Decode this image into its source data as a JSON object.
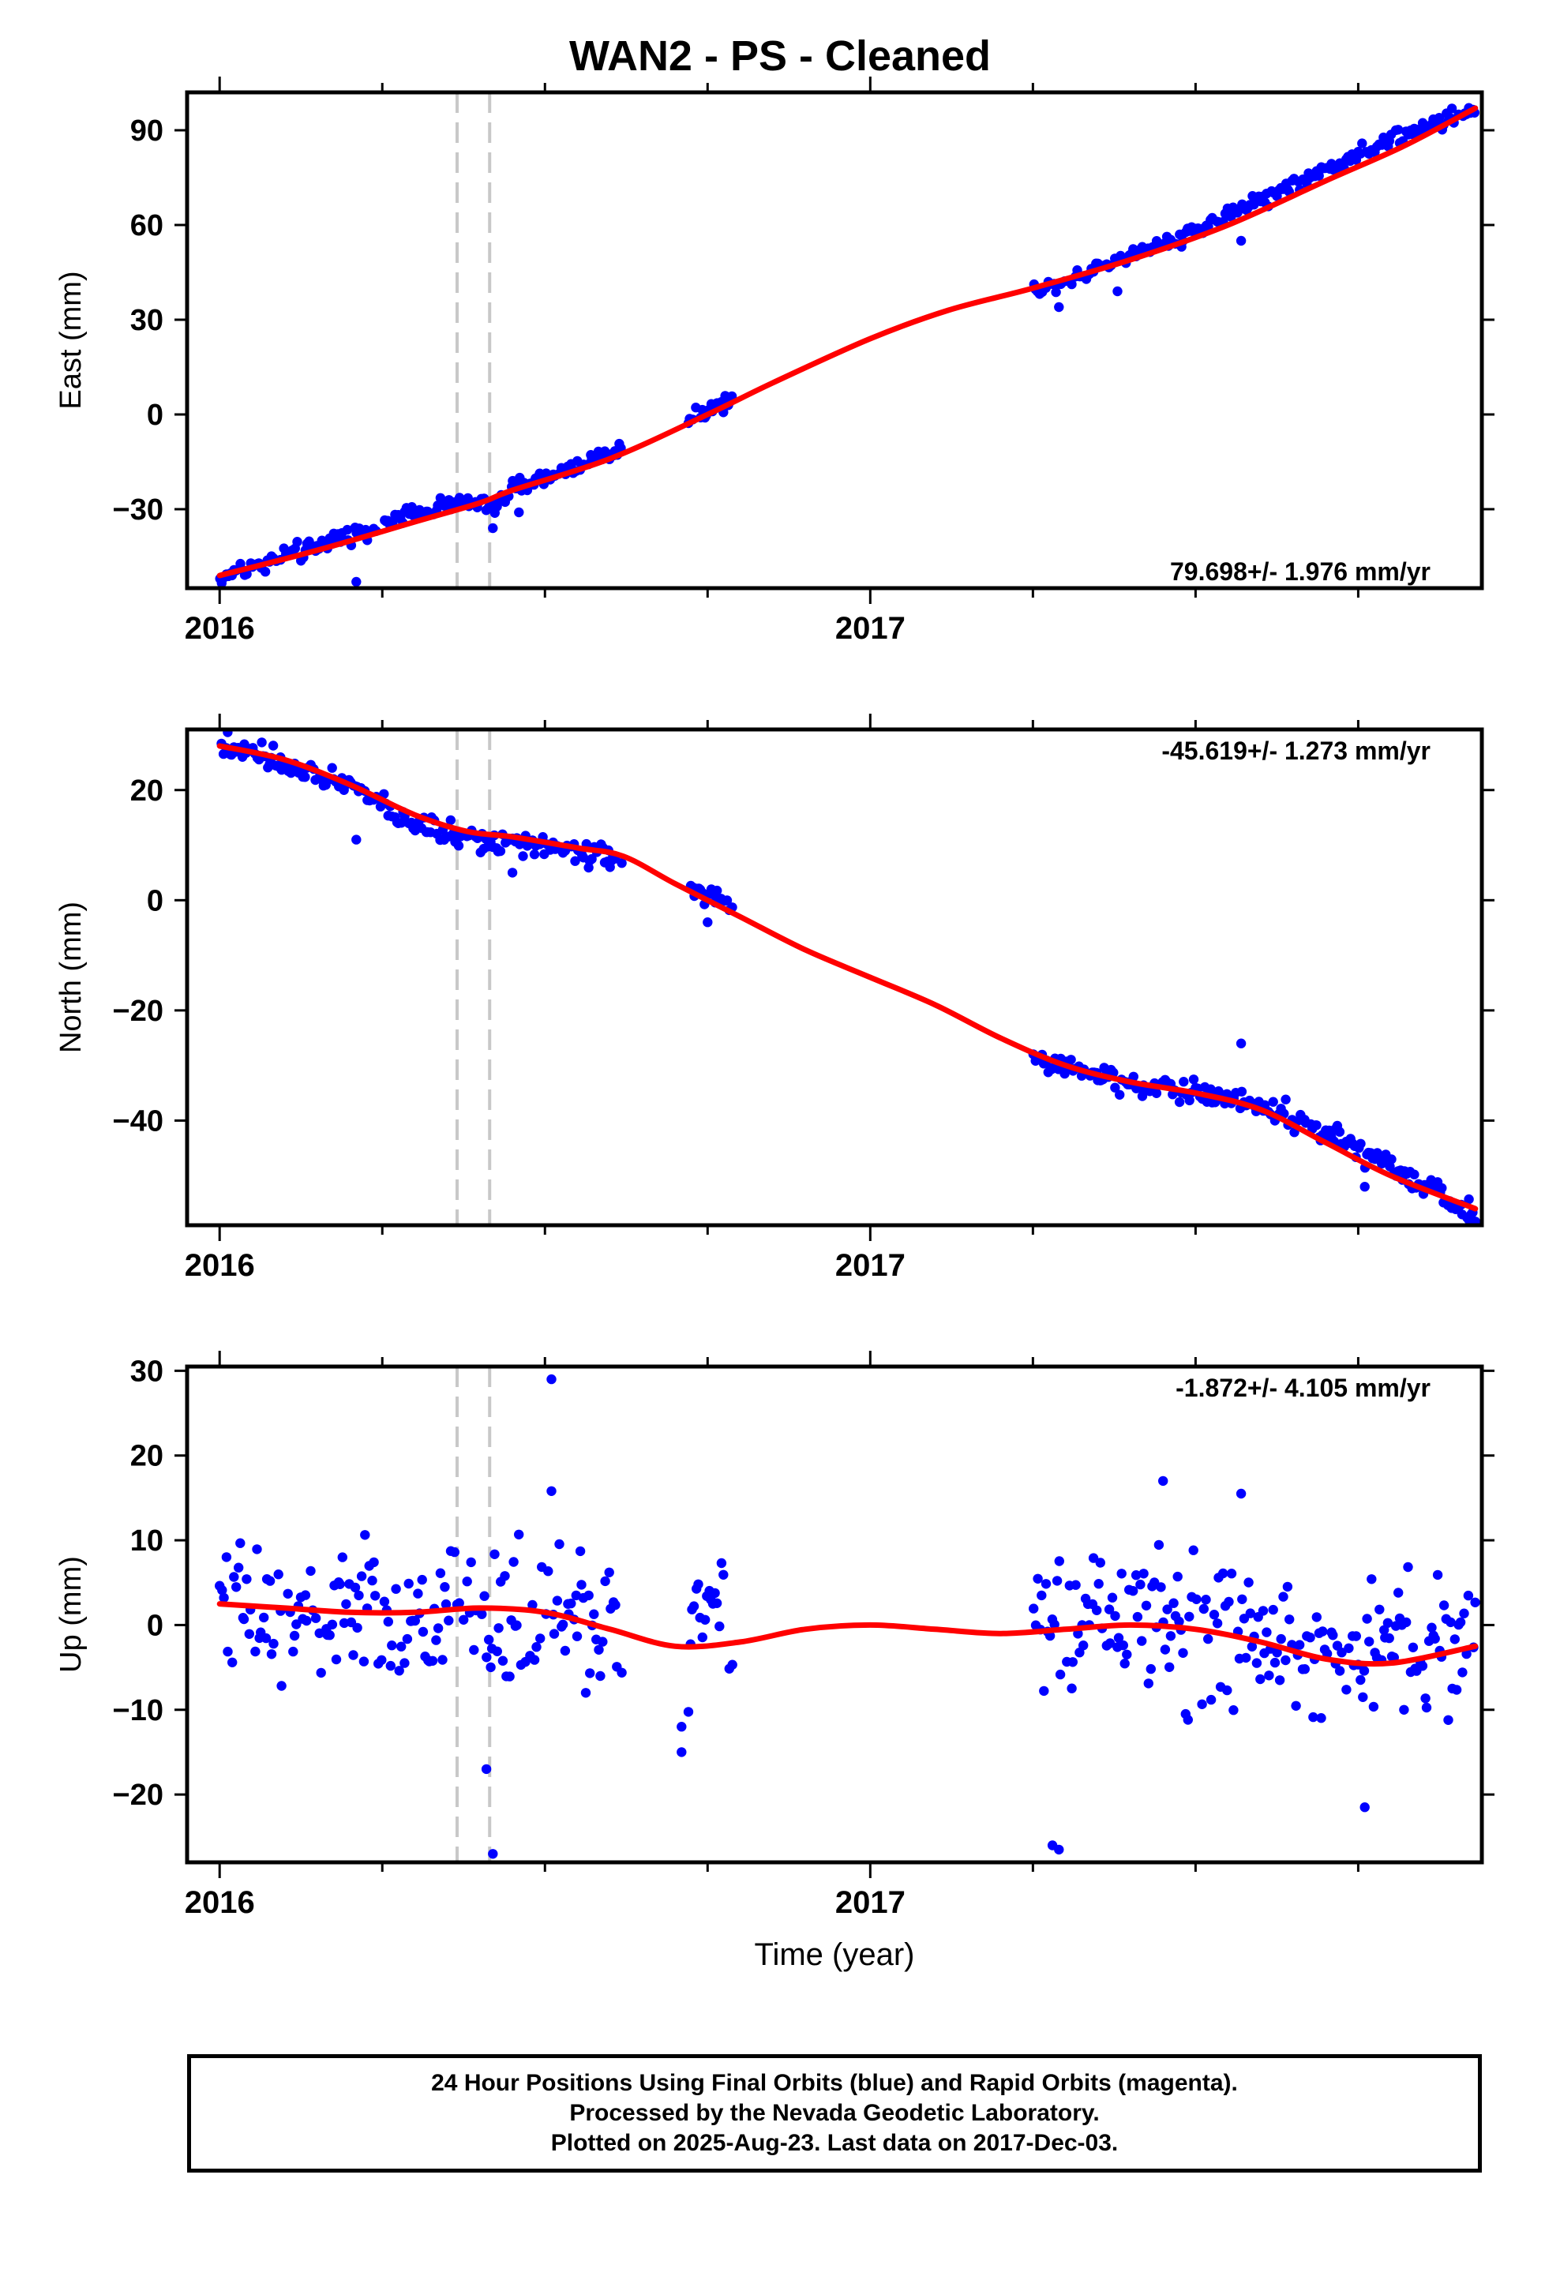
{
  "title": "WAN2  - PS - Cleaned",
  "footer": {
    "line1": "24 Hour Positions Using Final Orbits (blue) and Rapid Orbits (magenta).",
    "line2": "Processed by the Nevada Geodetic Laboratory.",
    "line3": "Plotted on 2025-Aug-23. Last data on 2017-Dec-03."
  },
  "colors": {
    "points": "#0000ff",
    "fit": "#ff0000",
    "event_lines": "#c8c8c8",
    "axes": "#000000"
  },
  "chart_data": [
    {
      "type": "scatter",
      "ylabel": "East (mm)",
      "xlabel": "",
      "rate_label": "79.698+/- 1.976 mm/yr",
      "xlim": [
        2015.95,
        2017.94
      ],
      "ylim": [
        -55,
        102
      ],
      "yticks": [
        -30,
        0,
        30,
        60,
        90
      ],
      "xticks": [
        2016,
        2017
      ],
      "event_lines": [
        2016.365,
        2016.415
      ],
      "series": [
        {
          "type": "points",
          "gaps": [
            [
              2016.62,
              2016.72
            ],
            [
              2016.79,
              2017.25
            ]
          ],
          "x_range": [
            2016.0,
            2017.93
          ],
          "knots": [
            [
              2016.0,
              -51.5
            ],
            [
              2016.36,
              -27.5
            ],
            [
              2016.42,
              -29
            ],
            [
              2016.45,
              -24
            ],
            [
              2016.6,
              -12
            ],
            [
              2016.72,
              -2
            ],
            [
              2016.79,
              5
            ],
            [
              2017.25,
              39
            ],
            [
              2017.5,
              58
            ],
            [
              2017.7,
              78
            ],
            [
              2017.93,
              97
            ]
          ],
          "noise": 1.6,
          "outliers": [
            [
              2016.21,
              -53
            ],
            [
              2016.42,
              -36
            ],
            [
              2016.46,
              -31
            ],
            [
              2017.29,
              34
            ],
            [
              2017.38,
              39
            ],
            [
              2017.57,
              55
            ]
          ]
        },
        {
          "type": "fit",
          "knots": [
            [
              2016.0,
              -51
            ],
            [
              2016.15,
              -43
            ],
            [
              2016.3,
              -34
            ],
            [
              2016.4,
              -28
            ],
            [
              2016.45,
              -24
            ],
            [
              2016.6,
              -14
            ],
            [
              2016.75,
              0
            ],
            [
              2016.85,
              10
            ],
            [
              2017.0,
              24
            ],
            [
              2017.12,
              33
            ],
            [
              2017.25,
              40
            ],
            [
              2017.4,
              49
            ],
            [
              2017.55,
              60
            ],
            [
              2017.7,
              74
            ],
            [
              2017.82,
              85
            ],
            [
              2017.93,
              97
            ]
          ]
        }
      ]
    },
    {
      "type": "scatter",
      "ylabel": "North (mm)",
      "xlabel": "",
      "rate_label": "-45.619+/- 1.273 mm/yr",
      "xlim": [
        2015.95,
        2017.94
      ],
      "ylim": [
        -59,
        31
      ],
      "yticks": [
        -40,
        -20,
        0,
        20
      ],
      "xticks": [
        2016,
        2017
      ],
      "event_lines": [
        2016.365,
        2016.415
      ],
      "series": [
        {
          "type": "points",
          "gaps": [
            [
              2016.62,
              2016.72
            ],
            [
              2016.79,
              2017.25
            ]
          ],
          "x_range": [
            2016.0,
            2017.93
          ],
          "knots": [
            [
              2016.0,
              28.5
            ],
            [
              2016.1,
              25
            ],
            [
              2016.2,
              21
            ],
            [
              2016.3,
              14
            ],
            [
              2016.4,
              11
            ],
            [
              2016.5,
              9
            ],
            [
              2016.6,
              8
            ],
            [
              2016.72,
              2
            ],
            [
              2016.79,
              -1
            ],
            [
              2017.25,
              -29
            ],
            [
              2017.4,
              -33
            ],
            [
              2017.6,
              -37
            ],
            [
              2017.72,
              -43
            ],
            [
              2017.93,
              -57
            ]
          ],
          "noise": 1.3,
          "outliers": [
            [
              2016.21,
              11
            ],
            [
              2016.45,
              5
            ],
            [
              2016.6,
              6
            ],
            [
              2016.75,
              -4
            ],
            [
              2017.57,
              -26
            ],
            [
              2017.76,
              -52
            ],
            [
              2017.92,
              -58
            ]
          ]
        },
        {
          "type": "fit",
          "knots": [
            [
              2016.0,
              28
            ],
            [
              2016.1,
              25.5
            ],
            [
              2016.2,
              21
            ],
            [
              2016.3,
              15.5
            ],
            [
              2016.38,
              12.5
            ],
            [
              2016.45,
              11.5
            ],
            [
              2016.55,
              9.5
            ],
            [
              2016.62,
              8
            ],
            [
              2016.7,
              3
            ],
            [
              2016.8,
              -3
            ],
            [
              2016.9,
              -9
            ],
            [
              2017.0,
              -14
            ],
            [
              2017.1,
              -19
            ],
            [
              2017.2,
              -25
            ],
            [
              2017.3,
              -30
            ],
            [
              2017.4,
              -33
            ],
            [
              2017.5,
              -35
            ],
            [
              2017.6,
              -38
            ],
            [
              2017.7,
              -44
            ],
            [
              2017.8,
              -50
            ],
            [
              2017.93,
              -56
            ]
          ]
        }
      ]
    },
    {
      "type": "scatter",
      "ylabel": "Up (mm)",
      "xlabel": "Time (year)",
      "rate_label": "-1.872+/- 4.105 mm/yr",
      "xlim": [
        2015.95,
        2017.94
      ],
      "ylim": [
        -28,
        30.5
      ],
      "yticks": [
        -20,
        -10,
        0,
        10,
        20,
        30
      ],
      "xticks": [
        2016,
        2017
      ],
      "event_lines": [
        2016.365,
        2016.415
      ],
      "series": [
        {
          "type": "points",
          "gaps": [
            [
              2016.62,
              2016.72
            ],
            [
              2016.79,
              2017.25
            ]
          ],
          "x_range": [
            2016.0,
            2017.93
          ],
          "knots": [
            [
              2016.0,
              2
            ],
            [
              2016.2,
              1
            ],
            [
              2016.4,
              1.5
            ],
            [
              2016.6,
              0
            ],
            [
              2016.72,
              -2
            ],
            [
              2016.79,
              -2
            ],
            [
              2017.25,
              0
            ],
            [
              2017.4,
              1
            ],
            [
              2017.6,
              -2
            ],
            [
              2017.7,
              -4
            ],
            [
              2017.93,
              -2
            ]
          ],
          "noise": 5.2,
          "outliers": [
            [
              2016.51,
              29
            ],
            [
              2016.42,
              -27
            ],
            [
              2016.41,
              -17
            ],
            [
              2016.71,
              -15
            ],
            [
              2016.71,
              -12
            ],
            [
              2017.29,
              -26.5
            ],
            [
              2017.28,
              -26
            ],
            [
              2017.45,
              17
            ],
            [
              2017.76,
              -21.5
            ],
            [
              2017.57,
              15.5
            ],
            [
              2016.51,
              15.8
            ]
          ]
        },
        {
          "type": "fit",
          "knots": [
            [
              2016.0,
              2.5
            ],
            [
              2016.1,
              2
            ],
            [
              2016.2,
              1.5
            ],
            [
              2016.3,
              1.5
            ],
            [
              2016.4,
              2
            ],
            [
              2016.5,
              1.5
            ],
            [
              2016.6,
              -0.5
            ],
            [
              2016.7,
              -2.5
            ],
            [
              2016.8,
              -2
            ],
            [
              2016.9,
              -0.5
            ],
            [
              2017.0,
              0
            ],
            [
              2017.1,
              -0.5
            ],
            [
              2017.2,
              -1
            ],
            [
              2017.3,
              -0.5
            ],
            [
              2017.4,
              0
            ],
            [
              2017.5,
              -0.5
            ],
            [
              2017.6,
              -2
            ],
            [
              2017.7,
              -4
            ],
            [
              2017.8,
              -4.5
            ],
            [
              2017.93,
              -2.5
            ]
          ]
        }
      ]
    }
  ]
}
